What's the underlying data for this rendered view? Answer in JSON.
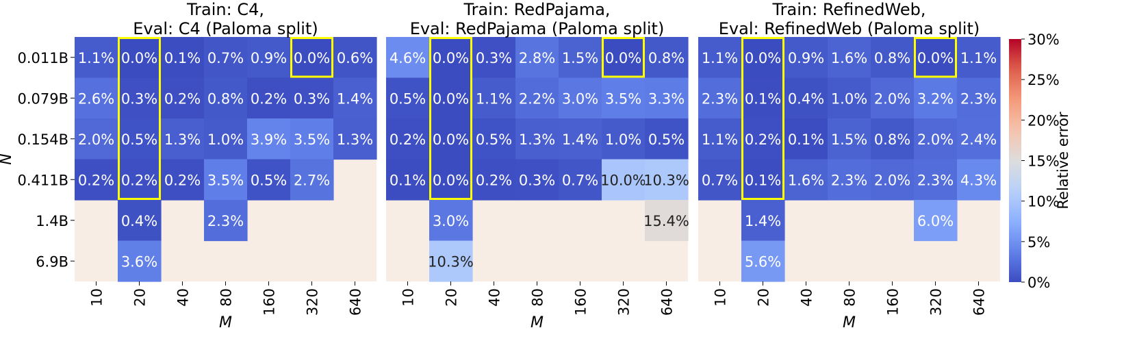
{
  "chart_data": [
    {
      "type": "heatmap",
      "title_line1": "Train: C4,",
      "title_line2": "Eval: C4 (Paloma split)",
      "xlabel": "M",
      "ylabel": "N",
      "x": [
        "10",
        "20",
        "40",
        "80",
        "160",
        "320",
        "640"
      ],
      "y": [
        "0.011B",
        "0.079B",
        "0.154B",
        "0.411B",
        "1.4B",
        "6.9B"
      ],
      "values": [
        [
          1.1,
          0.0,
          0.1,
          0.7,
          0.9,
          0.0,
          0.6
        ],
        [
          2.6,
          0.3,
          0.2,
          0.8,
          0.2,
          0.3,
          1.4
        ],
        [
          2.0,
          0.5,
          1.3,
          1.0,
          3.9,
          3.5,
          1.3
        ],
        [
          0.2,
          0.2,
          0.2,
          3.5,
          0.5,
          2.7,
          null
        ],
        [
          null,
          0.4,
          null,
          2.3,
          null,
          null,
          null
        ],
        [
          null,
          3.6,
          null,
          null,
          null,
          null,
          null
        ]
      ],
      "highlights": [
        {
          "col_start": 1,
          "col_end": 1,
          "row_start": 0,
          "row_end": 3
        },
        {
          "col_start": 5,
          "col_end": 5,
          "row_start": 0,
          "row_end": 0
        }
      ]
    },
    {
      "type": "heatmap",
      "title_line1": "Train: RedPajama,",
      "title_line2": "Eval: RedPajama (Paloma split)",
      "xlabel": "M",
      "x": [
        "10",
        "20",
        "40",
        "80",
        "160",
        "320",
        "640"
      ],
      "y": [
        "0.011B",
        "0.079B",
        "0.154B",
        "0.411B",
        "1.4B",
        "6.9B"
      ],
      "values": [
        [
          4.6,
          0.0,
          0.3,
          2.8,
          1.5,
          0.0,
          0.8
        ],
        [
          0.5,
          0.0,
          1.1,
          2.2,
          3.0,
          3.5,
          3.3
        ],
        [
          0.2,
          0.0,
          0.5,
          1.3,
          1.4,
          1.0,
          0.5
        ],
        [
          0.1,
          0.0,
          0.2,
          0.3,
          0.7,
          10.0,
          10.3
        ],
        [
          null,
          3.0,
          null,
          null,
          null,
          null,
          15.4
        ],
        [
          null,
          10.3,
          null,
          null,
          null,
          null,
          null
        ]
      ],
      "highlights": [
        {
          "col_start": 1,
          "col_end": 1,
          "row_start": 0,
          "row_end": 3
        },
        {
          "col_start": 5,
          "col_end": 5,
          "row_start": 0,
          "row_end": 0
        }
      ]
    },
    {
      "type": "heatmap",
      "title_line1": "Train: RefinedWeb,",
      "title_line2": "Eval: RefinedWeb (Paloma split)",
      "xlabel": "M",
      "x": [
        "10",
        "20",
        "40",
        "80",
        "160",
        "320",
        "640"
      ],
      "y": [
        "0.011B",
        "0.079B",
        "0.154B",
        "0.411B",
        "1.4B",
        "6.9B"
      ],
      "values": [
        [
          1.1,
          0.0,
          0.9,
          1.6,
          0.8,
          0.0,
          1.1
        ],
        [
          2.3,
          0.1,
          0.4,
          1.0,
          2.0,
          3.2,
          2.3
        ],
        [
          1.1,
          0.2,
          0.1,
          1.5,
          0.8,
          2.0,
          2.4
        ],
        [
          0.7,
          0.1,
          1.6,
          2.3,
          2.0,
          2.3,
          4.3
        ],
        [
          null,
          1.4,
          null,
          null,
          null,
          6.0,
          null
        ],
        [
          null,
          5.6,
          null,
          null,
          null,
          null,
          null
        ]
      ],
      "highlights": [
        {
          "col_start": 1,
          "col_end": 1,
          "row_start": 0,
          "row_end": 3
        },
        {
          "col_start": 5,
          "col_end": 5,
          "row_start": 0,
          "row_end": 0
        }
      ]
    }
  ],
  "colorbar": {
    "label": "Relative error",
    "min": 0,
    "max": 30,
    "ticks": [
      "0%",
      "5%",
      "10%",
      "15%",
      "20%",
      "25%",
      "30%"
    ],
    "tick_values": [
      0,
      5,
      10,
      15,
      20,
      25,
      30
    ],
    "colormap": "coolwarm"
  },
  "colors": {
    "missing_cell": "#f8ede4",
    "highlight": "#ffff00",
    "text_light": "#ffffff",
    "text_dark": "#222222"
  }
}
